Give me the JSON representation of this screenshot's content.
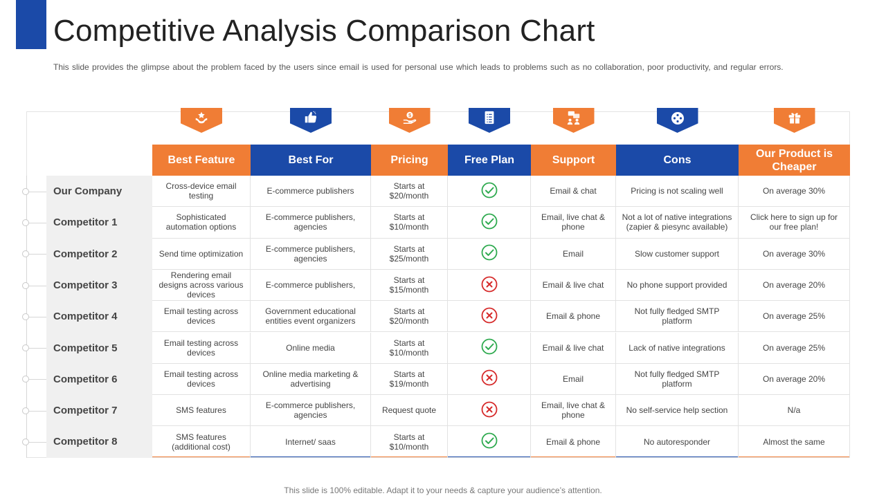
{
  "slide": {
    "title": "Competitive Analysis Comparison Chart",
    "subtitle": "This slide provides the glimpse about the problem faced by the users since email is used for personal use which leads to problems such as no collaboration, poor productivity, and regular errors.",
    "footer": "This slide is 100% editable. Adapt it to your needs & capture your audience’s attention."
  },
  "colors": {
    "orange": "#f07d35",
    "blue": "#1b4aa8",
    "check": "#2eaa4f",
    "cross": "#d62a2a"
  },
  "columns": [
    {
      "label": "Best Feature",
      "color": "orange",
      "icon": "hand-star-icon"
    },
    {
      "label": "Best For",
      "color": "blue",
      "icon": "thumbs-up-icon"
    },
    {
      "label": "Pricing",
      "color": "orange",
      "icon": "money-hand-icon"
    },
    {
      "label": "Free Plan",
      "color": "blue",
      "icon": "checklist-icon"
    },
    {
      "label": "Support",
      "color": "orange",
      "icon": "support-chat-icon"
    },
    {
      "label": "Cons",
      "color": "blue",
      "icon": "gamepad-icon"
    },
    {
      "label": "Our Product is Cheaper",
      "color": "orange",
      "icon": "gift-icon"
    }
  ],
  "rows": [
    {
      "name": "Our Company",
      "best_feature": "Cross-device email testing",
      "best_for": "E-commerce publishers",
      "pricing": "Starts at $20/month",
      "free_plan": true,
      "support": "Email & chat",
      "cons": "Pricing is not scaling well",
      "cheaper": "On average 30%"
    },
    {
      "name": "Competitor 1",
      "best_feature": "Sophisticated automation options",
      "best_for": "E-commerce publishers, agencies",
      "pricing": "Starts at $10/month",
      "free_plan": true,
      "support": "Email, live chat & phone",
      "cons": "Not a lot of native integrations (zapier & piesync available)",
      "cheaper": "Click here to sign up for our free plan!"
    },
    {
      "name": "Competitor 2",
      "best_feature": "Send time optimization",
      "best_for": "E-commerce publishers, agencies",
      "pricing": "Starts at $25/month",
      "free_plan": true,
      "support": "Email",
      "cons": "Slow customer support",
      "cheaper": "On average 30%"
    },
    {
      "name": "Competitor 3",
      "best_feature": "Rendering email designs across various devices",
      "best_for": "E-commerce publishers,",
      "pricing": "Starts at $15/month",
      "free_plan": false,
      "support": "Email & live chat",
      "cons": "No phone support provided",
      "cheaper": "On average 20%"
    },
    {
      "name": "Competitor 4",
      "best_feature": "Email testing across devices",
      "best_for": "Government educational entities event organizers",
      "pricing": "Starts at $20/month",
      "free_plan": false,
      "support": "Email & phone",
      "cons": "Not fully fledged SMTP platform",
      "cheaper": "On average 25%"
    },
    {
      "name": "Competitor 5",
      "best_feature": "Email testing across devices",
      "best_for": "Online media",
      "pricing": "Starts at $10/month",
      "free_plan": true,
      "support": "Email & live chat",
      "cons": "Lack of native integrations",
      "cheaper": "On average 25%"
    },
    {
      "name": "Competitor 6",
      "best_feature": "Email testing across devices",
      "best_for": "Online media marketing & advertising",
      "pricing": "Starts at $19/month",
      "free_plan": false,
      "support": "Email",
      "cons": "Not fully fledged SMTP platform",
      "cheaper": "On average 20%"
    },
    {
      "name": "Competitor 7",
      "best_feature": "SMS features",
      "best_for": "E-commerce publishers, agencies",
      "pricing": "Request quote",
      "free_plan": false,
      "support": "Email, live chat & phone",
      "cons": "No self-service help section",
      "cheaper": "N/a"
    },
    {
      "name": "Competitor 8",
      "best_feature": "SMS features (additional cost)",
      "best_for": "Internet/ saas",
      "pricing": "Starts at $10/month",
      "free_plan": true,
      "support": "Email & phone",
      "cons": "No autoresponder",
      "cheaper": "Almost the same"
    }
  ]
}
